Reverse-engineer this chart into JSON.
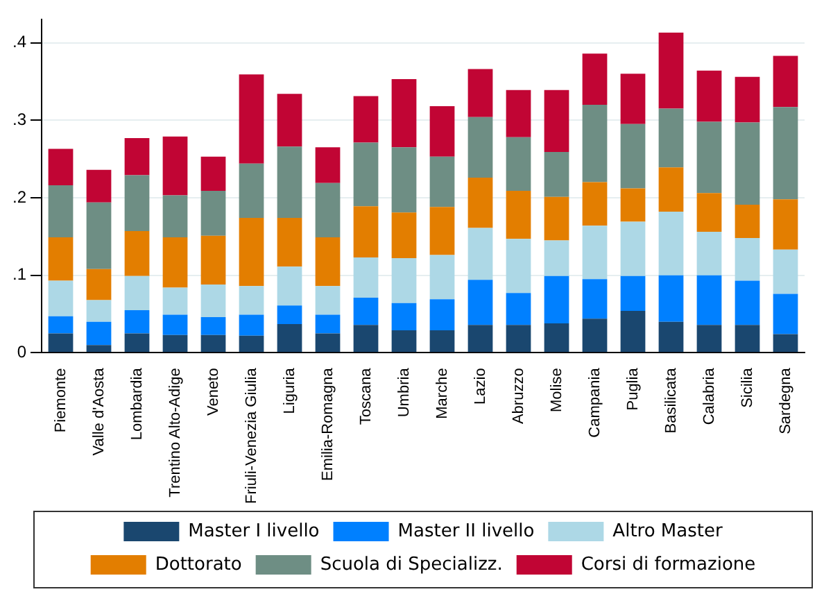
{
  "chart_data": {
    "type": "bar",
    "stacked": true,
    "categories": [
      "Piemonte",
      "Valle d'Aosta",
      "Lombardia",
      "Trentino Alto-Adige",
      "Veneto",
      "Friuli-Venezia Giulia",
      "Liguria",
      "Emilia-Romagna",
      "Toscana",
      "Umbria",
      "Marche",
      "Lazio",
      "Abruzzo",
      "Molise",
      "Campania",
      "Puglia",
      "Basilicata",
      "Calabria",
      "Sicilia",
      "Sardegna"
    ],
    "series": [
      {
        "name": "Master I livello",
        "color": "#1a476f",
        "values": [
          0.025,
          0.01,
          0.025,
          0.023,
          0.023,
          0.022,
          0.037,
          0.025,
          0.036,
          0.029,
          0.029,
          0.036,
          0.036,
          0.038,
          0.044,
          0.054,
          0.04,
          0.036,
          0.036,
          0.024
        ]
      },
      {
        "name": "Master II livello",
        "color": "#0080ff",
        "values": [
          0.022,
          0.03,
          0.03,
          0.026,
          0.023,
          0.027,
          0.024,
          0.024,
          0.035,
          0.035,
          0.04,
          0.058,
          0.041,
          0.061,
          0.051,
          0.045,
          0.06,
          0.064,
          0.057,
          0.052
        ]
      },
      {
        "name": "Altro Master",
        "color": "#add8e6",
        "values": [
          0.046,
          0.028,
          0.044,
          0.035,
          0.042,
          0.037,
          0.05,
          0.037,
          0.052,
          0.058,
          0.057,
          0.067,
          0.07,
          0.046,
          0.069,
          0.07,
          0.082,
          0.056,
          0.055,
          0.057
        ]
      },
      {
        "name": "Dottorato",
        "color": "#e37e00",
        "values": [
          0.056,
          0.04,
          0.058,
          0.065,
          0.063,
          0.088,
          0.063,
          0.063,
          0.066,
          0.059,
          0.062,
          0.065,
          0.062,
          0.056,
          0.056,
          0.043,
          0.057,
          0.05,
          0.043,
          0.065
        ]
      },
      {
        "name": "Scuola di Specializz.",
        "color": "#6e8e84",
        "values": [
          0.067,
          0.086,
          0.072,
          0.054,
          0.058,
          0.07,
          0.092,
          0.07,
          0.082,
          0.084,
          0.065,
          0.078,
          0.069,
          0.058,
          0.1,
          0.083,
          0.076,
          0.092,
          0.106,
          0.119
        ]
      },
      {
        "name": "Corsi di formazione",
        "color": "#c10534",
        "values": [
          0.047,
          0.042,
          0.048,
          0.076,
          0.044,
          0.115,
          0.068,
          0.046,
          0.06,
          0.088,
          0.065,
          0.062,
          0.061,
          0.08,
          0.066,
          0.065,
          0.098,
          0.066,
          0.059,
          0.066
        ]
      }
    ],
    "ylim": [
      0,
      0.43
    ],
    "yticks": [
      0,
      {
        "value": 0.1,
        "label": ".1"
      },
      {
        "value": 0.2,
        "label": ".2"
      },
      {
        "value": 0.3,
        "label": ".3"
      },
      {
        "value": 0.4,
        "label": ".4"
      }
    ],
    "grid": "y",
    "legend": "bottom"
  }
}
